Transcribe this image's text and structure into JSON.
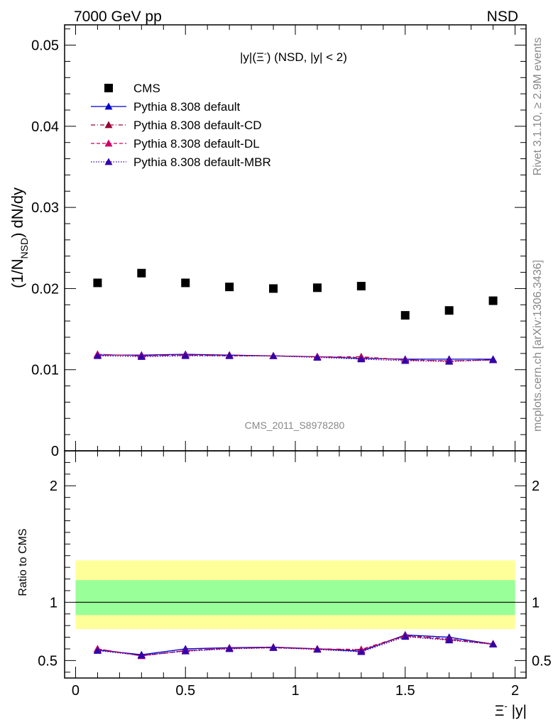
{
  "header": {
    "left": "7000 GeV pp",
    "right": "NSD"
  },
  "side_labels": {
    "rivet": "Rivet 3.1.10, ≥ 2.9M events",
    "mcplots": "mcplots.cern.ch [arXiv:1306.3436]"
  },
  "chart_data": [
    {
      "type": "scatter",
      "title_parts": [
        "|y|(Ξ",
        "-",
        ") (NSD, |y| < 2)"
      ],
      "watermark": "CMS_2011_S8978280",
      "ylabel_parts": [
        "(1/N",
        "NSD",
        ") dN/dy"
      ],
      "xlim": [
        -0.05,
        2.05
      ],
      "ylim": [
        0,
        0.0525
      ],
      "yticks": [
        0,
        0.01,
        0.02,
        0.03,
        0.04,
        0.05
      ],
      "ytick_labels": [
        "0",
        "0.01",
        "0.02",
        "0.03",
        "0.04",
        "0.05"
      ],
      "legend_position": "top-left",
      "x": [
        0.1,
        0.3,
        0.5,
        0.7,
        0.9,
        1.1,
        1.3,
        1.5,
        1.7,
        1.9
      ],
      "series": [
        {
          "name": "CMS",
          "marker": "square",
          "color": "#000000",
          "line": "none",
          "values": [
            0.0207,
            0.0219,
            0.0207,
            0.0202,
            0.02,
            0.0201,
            0.0203,
            0.0167,
            0.0173,
            0.0185
          ]
        },
        {
          "name": "Pythia 8.308 default",
          "marker": "triangle",
          "color": "#0000cc",
          "line": "solid",
          "values": [
            0.0118,
            0.0118,
            0.0119,
            0.0118,
            0.0117,
            0.0116,
            0.0114,
            0.0113,
            0.0113,
            0.0113
          ]
        },
        {
          "name": "Pythia 8.308 default-CD",
          "marker": "triangle",
          "color": "#990033",
          "line": "dashdot",
          "values": [
            0.0119,
            0.0117,
            0.0118,
            0.0118,
            0.0117,
            0.0116,
            0.0116,
            0.0112,
            0.0111,
            0.0112
          ]
        },
        {
          "name": "Pythia 8.308 default-DL",
          "marker": "triangle",
          "color": "#cc0066",
          "line": "dashed",
          "values": [
            0.0119,
            0.0117,
            0.0118,
            0.0117,
            0.0117,
            0.0116,
            0.0115,
            0.0112,
            0.0111,
            0.0112
          ]
        },
        {
          "name": "Pythia 8.308 default-MBR",
          "marker": "triangle",
          "color": "#3300aa",
          "line": "dotted",
          "values": [
            0.0117,
            0.0116,
            0.0117,
            0.0117,
            0.0117,
            0.0115,
            0.0113,
            0.0111,
            0.011,
            0.0112
          ]
        }
      ]
    },
    {
      "type": "line",
      "ylabel": "Ratio to CMS",
      "xlabel_parts": [
        "Ξ",
        "-",
        " |y|"
      ],
      "xlim": [
        -0.05,
        2.05
      ],
      "ylim": [
        0.35,
        2.3
      ],
      "xticks": [
        0,
        0.5,
        1,
        1.5,
        2
      ],
      "xtick_labels": [
        "0",
        "0.5",
        "1",
        "1.5",
        "2"
      ],
      "yticks": [
        0.5,
        1,
        2
      ],
      "ytick_labels": [
        "0.5",
        "1",
        "2"
      ],
      "band_x": [
        0,
        2
      ],
      "yellow_band": [
        0.77,
        1.36
      ],
      "green_band": [
        0.89,
        1.19
      ],
      "band_colors": {
        "yellow": "#ffff99",
        "green": "#99ff99"
      },
      "x": [
        0.1,
        0.3,
        0.5,
        0.7,
        0.9,
        1.1,
        1.3,
        1.5,
        1.7,
        1.9
      ],
      "series": [
        {
          "name": "Pythia 8.308 default",
          "color": "#0000cc",
          "line": "solid",
          "values": [
            0.59,
            0.55,
            0.6,
            0.61,
            0.615,
            0.6,
            0.58,
            0.72,
            0.7,
            0.64
          ]
        },
        {
          "name": "Pythia 8.308 default-CD",
          "color": "#990033",
          "line": "dashdot",
          "values": [
            0.6,
            0.54,
            0.585,
            0.605,
            0.615,
            0.6,
            0.595,
            0.715,
            0.685,
            0.645
          ]
        },
        {
          "name": "Pythia 8.308 default-DL",
          "color": "#cc0066",
          "line": "dashed",
          "values": [
            0.6,
            0.54,
            0.585,
            0.605,
            0.61,
            0.6,
            0.59,
            0.71,
            0.68,
            0.64
          ]
        },
        {
          "name": "Pythia 8.308 default-MBR",
          "color": "#3300aa",
          "line": "dotted",
          "values": [
            0.585,
            0.545,
            0.58,
            0.6,
            0.61,
            0.595,
            0.575,
            0.705,
            0.675,
            0.64
          ]
        }
      ]
    }
  ]
}
